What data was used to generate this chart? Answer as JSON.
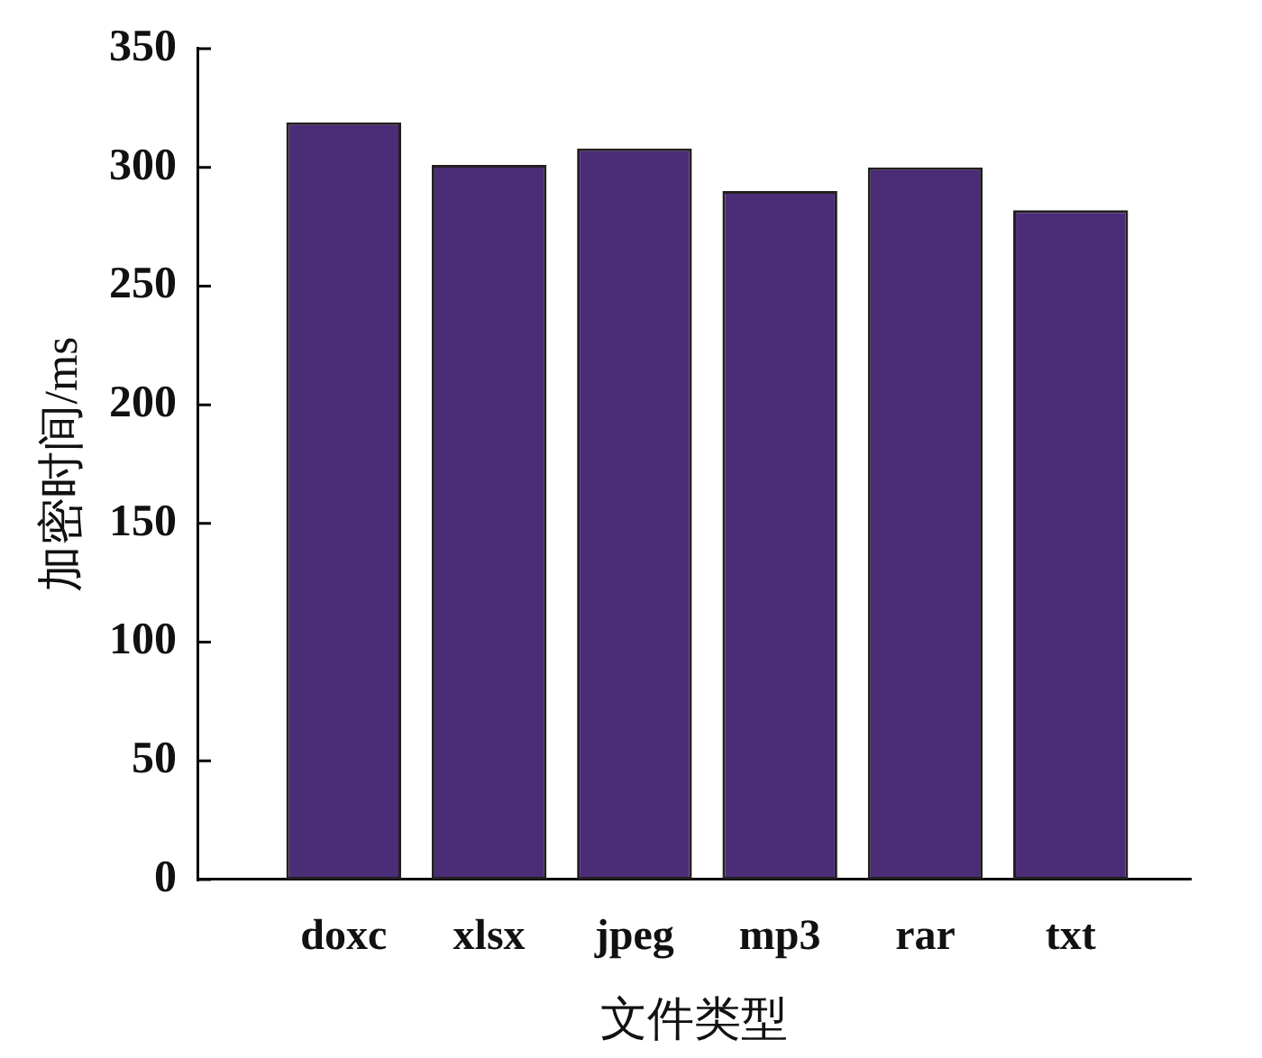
{
  "chart_data": {
    "type": "bar",
    "xlabel": "文件类型",
    "ylabel": "加密时间/ms",
    "categories": [
      "doxc",
      "xlsx",
      "jpeg",
      "mp3",
      "rar",
      "txt"
    ],
    "values": [
      319,
      301,
      308,
      290,
      300,
      282
    ],
    "color": "#4b2c77",
    "ylim": [
      0,
      350
    ],
    "yticks": [
      0,
      50,
      100,
      150,
      200,
      250,
      300,
      350
    ],
    "grid": false,
    "legend": false
  }
}
